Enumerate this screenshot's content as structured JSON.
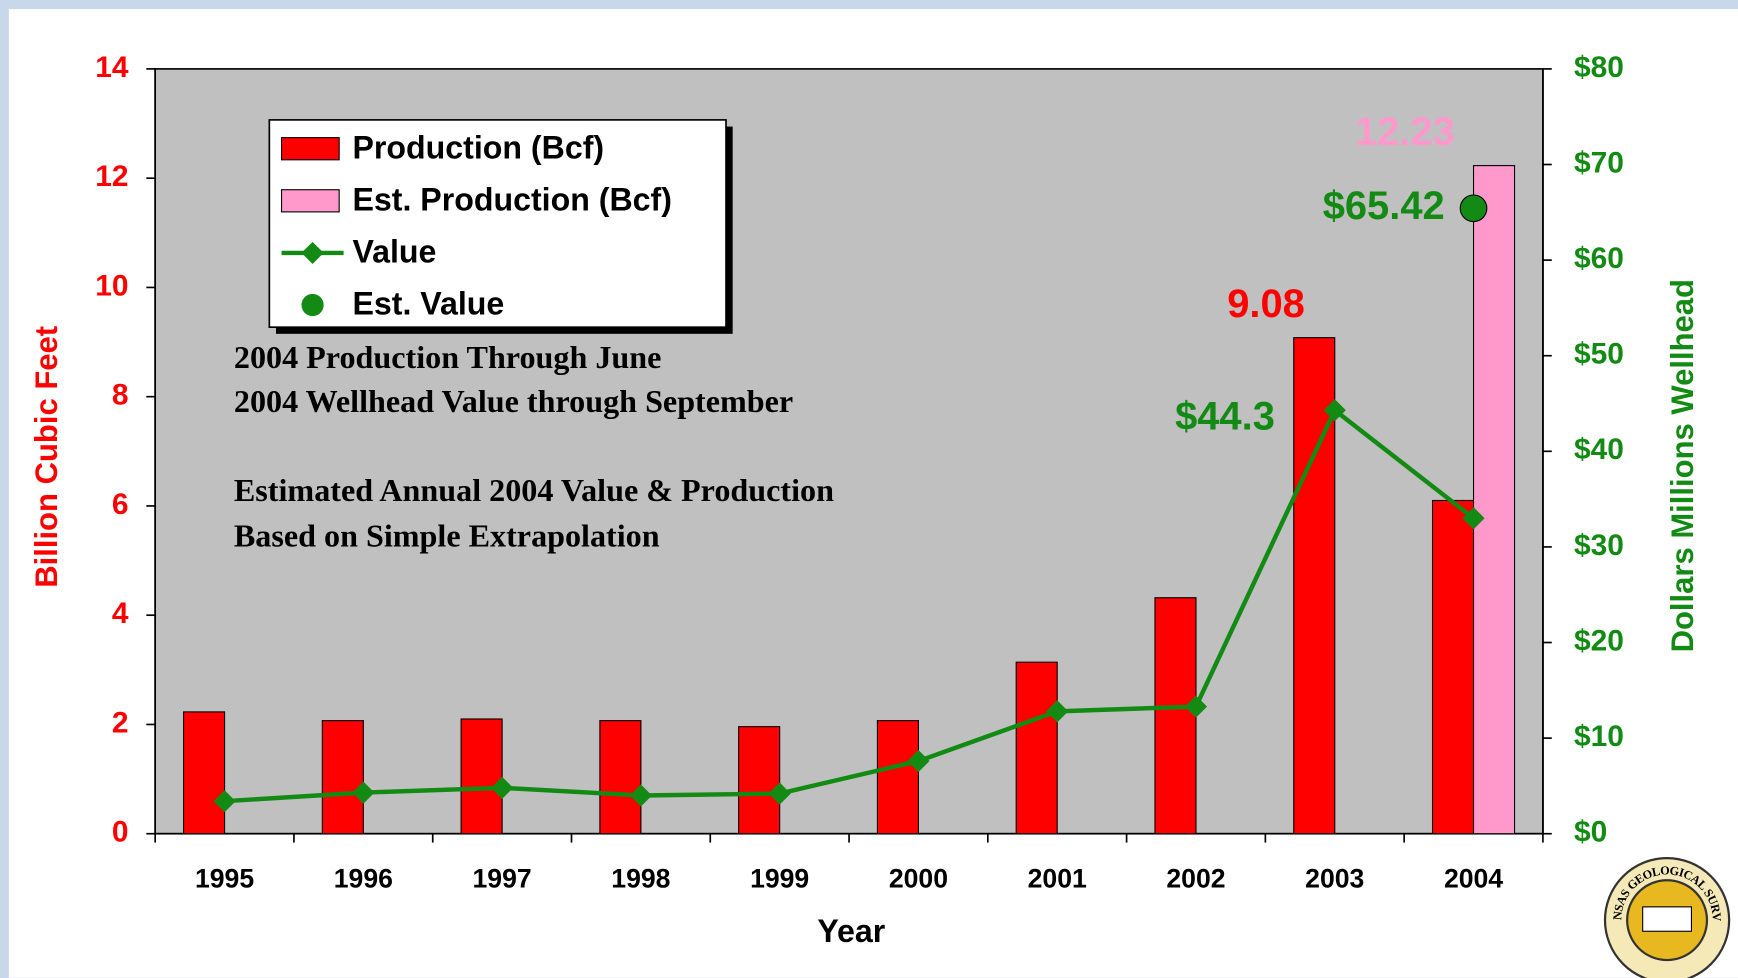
{
  "chart_data": {
    "type": "bar",
    "x_label": "Year",
    "y_label": "Billion Cubic Feet",
    "y2_label": "Dollars Millions Wellhead",
    "categories": [
      "1995",
      "1996",
      "1997",
      "1998",
      "1999",
      "2000",
      "2001",
      "2002",
      "2003",
      "2004"
    ],
    "series": [
      {
        "name": "Production (Bcf)",
        "type": "bar",
        "color": "#ff0000",
        "axis": "y",
        "values": [
          2.23,
          2.07,
          2.1,
          2.07,
          1.96,
          2.07,
          3.14,
          4.32,
          9.08,
          6.1
        ],
        "labeled": [
          8
        ]
      },
      {
        "name": "Est. Production (Bcf)",
        "type": "bar",
        "color": "#ff99cc",
        "axis": "y",
        "values": [
          null,
          null,
          null,
          null,
          null,
          null,
          null,
          null,
          null,
          12.23
        ],
        "labeled": [
          9
        ]
      },
      {
        "name": "Value",
        "type": "line",
        "color": "#138a13",
        "axis": "y2",
        "values": [
          3.4,
          4.3,
          4.8,
          4.0,
          4.2,
          7.6,
          12.8,
          13.3,
          44.3,
          33.0
        ],
        "value_labels": [
          null,
          null,
          null,
          null,
          null,
          null,
          null,
          null,
          "$44.3",
          null
        ]
      },
      {
        "name": "Est. Value",
        "type": "scatter",
        "color": "#138a13",
        "axis": "y2",
        "values": [
          null,
          null,
          null,
          null,
          null,
          null,
          null,
          null,
          null,
          65.42
        ],
        "value_labels": [
          null,
          null,
          null,
          null,
          null,
          null,
          null,
          null,
          null,
          "$65.42"
        ]
      }
    ],
    "ylim": [
      0,
      14
    ],
    "yticks": [
      0,
      2,
      4,
      6,
      8,
      10,
      12,
      14
    ],
    "y2lim": [
      0,
      80
    ],
    "y2ticks": [
      {
        "value": 0,
        "label": "$0"
      },
      {
        "value": 10,
        "label": "$10"
      },
      {
        "value": 20,
        "label": "$20"
      },
      {
        "value": 30,
        "label": "$30"
      },
      {
        "value": 40,
        "label": "$40"
      },
      {
        "value": 50,
        "label": "$50"
      },
      {
        "value": 60,
        "label": "$60"
      },
      {
        "value": 70,
        "label": "$70"
      },
      {
        "value": 80,
        "label": "$80"
      }
    ],
    "annotations": [
      "2004 Production Through June",
      "2004 Wellhead Value through September",
      "Estimated Annual 2004 Value & Production",
      "Based on Simple Extrapolation"
    ],
    "logo_text": "KANSAS GEOLOGICAL SURVEY",
    "legend": "upper left"
  }
}
